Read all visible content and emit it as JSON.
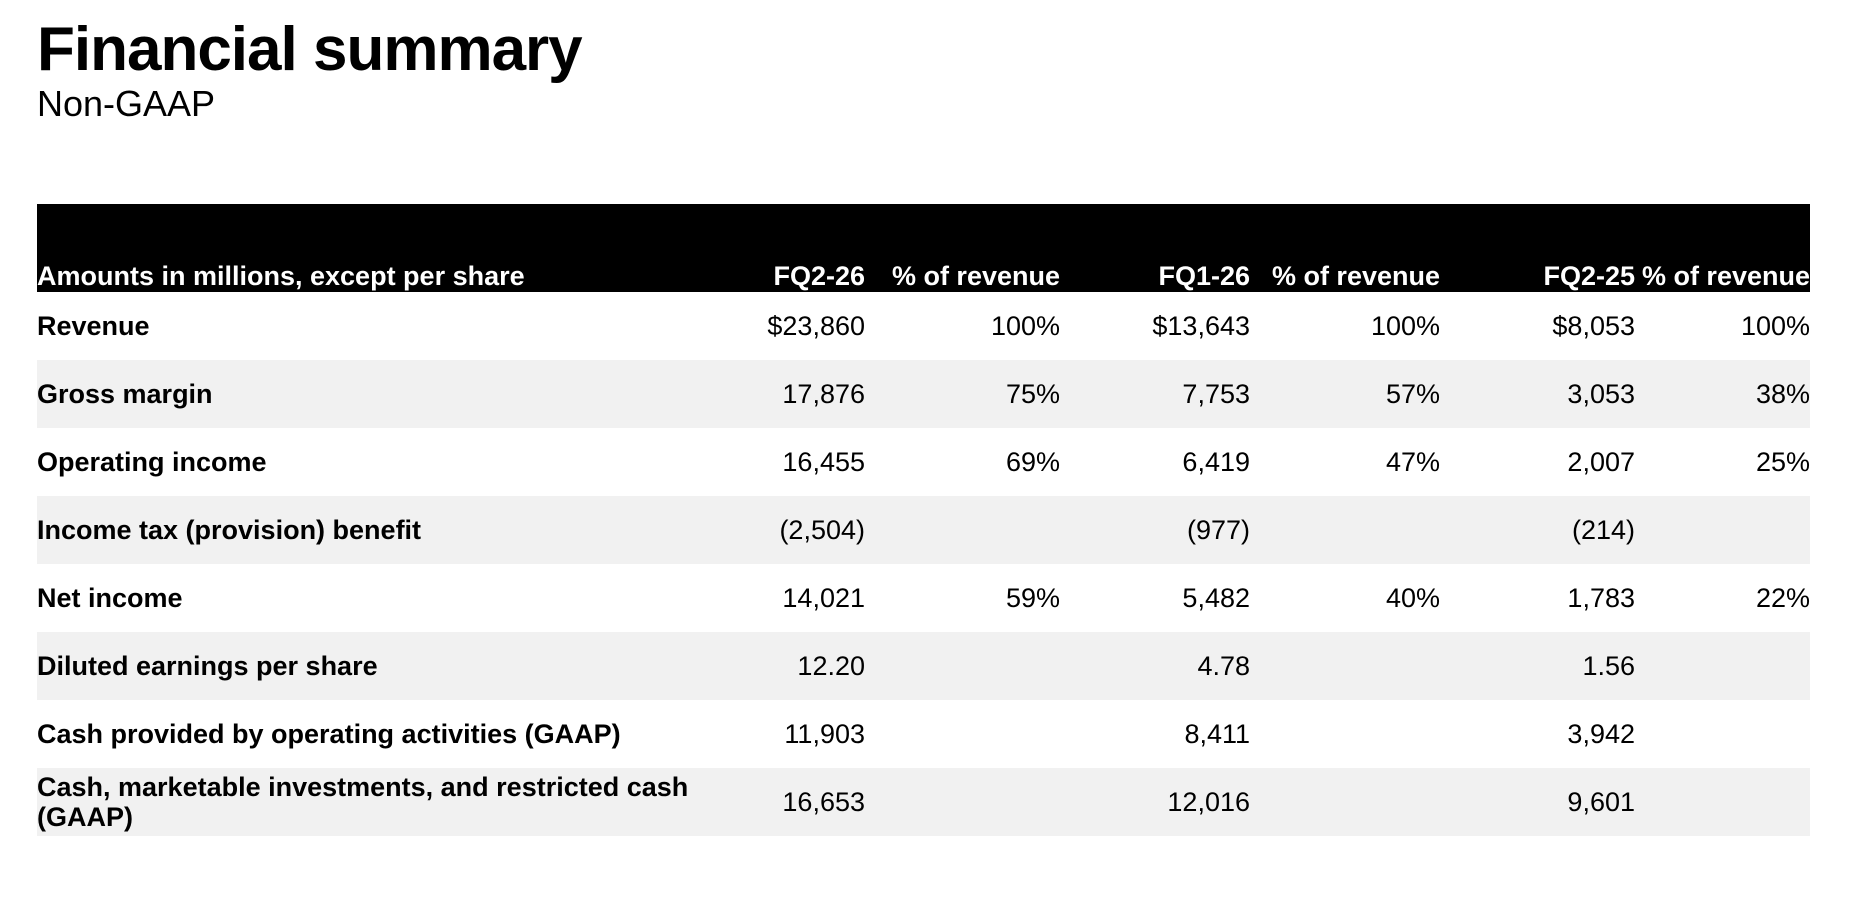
{
  "header": {
    "title": "Financial summary",
    "subtitle": "Non-GAAP"
  },
  "table": {
    "columns": [
      "Amounts in millions, except per share",
      "FQ2-26",
      "% of revenue",
      "FQ1-26",
      "% of revenue",
      "FQ2-25",
      "% of revenue"
    ],
    "rows": [
      {
        "label": "Revenue",
        "values": [
          "$23,860",
          "100%",
          "$13,643",
          "100%",
          "$8,053",
          "100%"
        ]
      },
      {
        "label": "Gross margin",
        "values": [
          "17,876",
          "75%",
          "7,753",
          "57%",
          "3,053",
          "38%"
        ]
      },
      {
        "label": "Operating income",
        "values": [
          "16,455",
          "69%",
          "6,419",
          "47%",
          "2,007",
          "25%"
        ]
      },
      {
        "label": "Income tax (provision) benefit",
        "values": [
          "(2,504)",
          "",
          "(977)",
          "",
          "(214)",
          ""
        ]
      },
      {
        "label": "Net income",
        "values": [
          "14,021",
          "59%",
          "5,482",
          "40%",
          "1,783",
          "22%"
        ]
      },
      {
        "label": "Diluted earnings per share",
        "values": [
          "12.20",
          "",
          "4.78",
          "",
          "1.56",
          ""
        ]
      },
      {
        "label": "Cash provided by operating activities (GAAP)",
        "values": [
          "11,903",
          "",
          "8,411",
          "",
          "3,942",
          ""
        ]
      },
      {
        "label": "Cash, marketable investments, and restricted cash (GAAP)",
        "values": [
          "16,653",
          "",
          "12,016",
          "",
          "9,601",
          ""
        ]
      }
    ]
  },
  "colors": {
    "header_band_bg": "#000000",
    "header_band_text": "#ffffff",
    "row_alt_bg": "#f1f1f1",
    "text": "#000000",
    "page_bg": "#ffffff"
  }
}
